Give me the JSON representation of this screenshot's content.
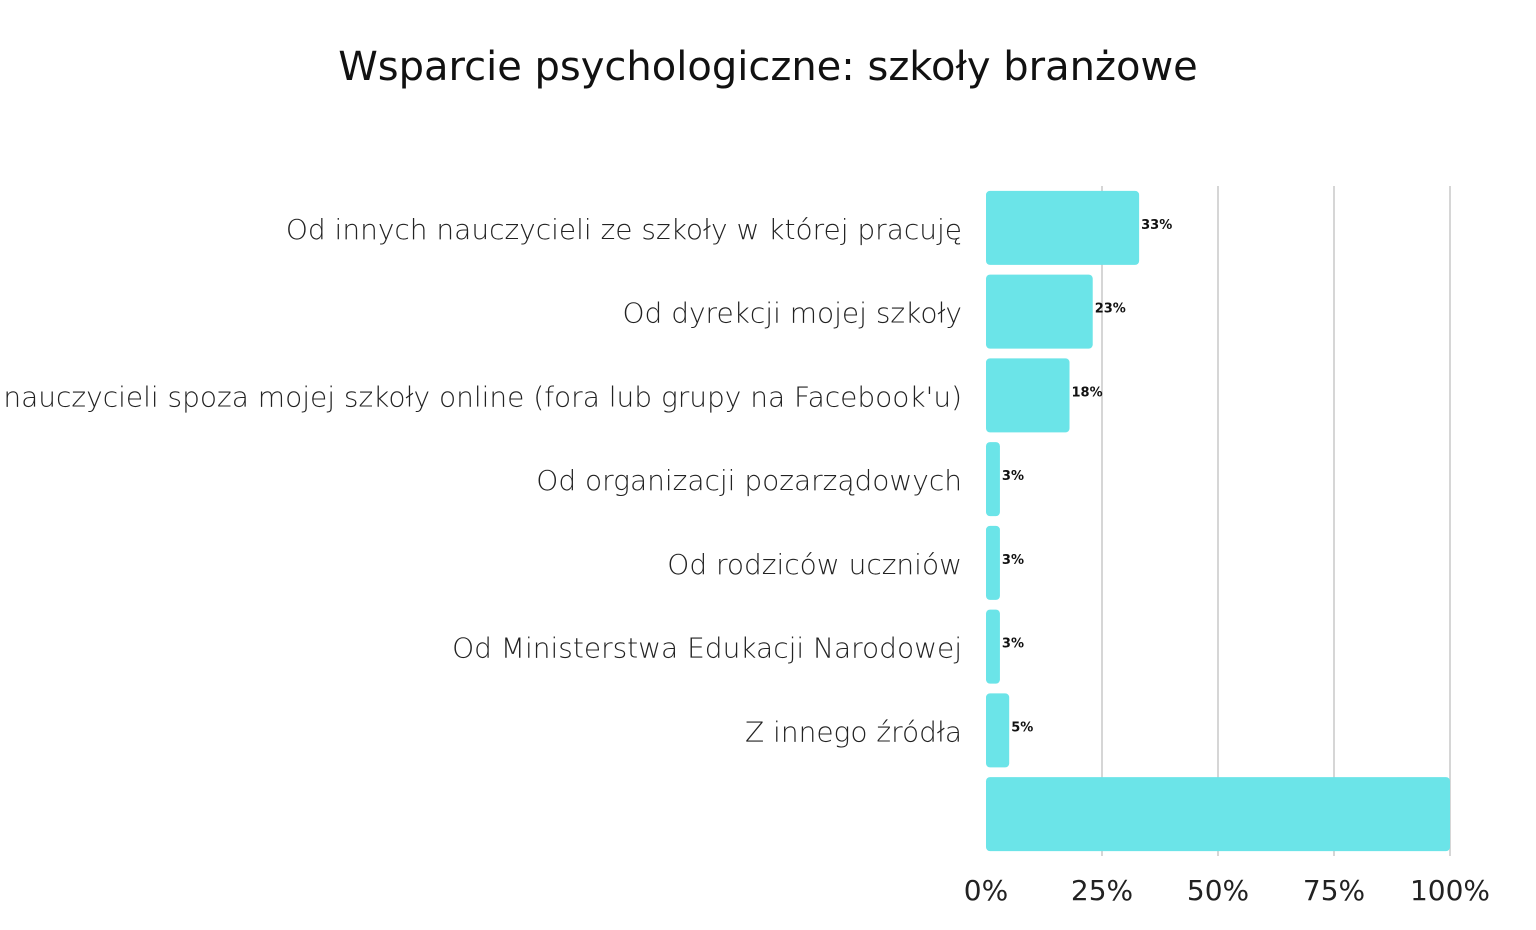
{
  "chart_data": {
    "type": "bar",
    "orientation": "horizontal",
    "title": "Wsparcie psychologiczne: szkoły branżowe",
    "categories": [
      "Od innych nauczycieli ze szkoły w której pracuję",
      "Od dyrekcji mojej szkoły",
      "Od nauczycieli spoza mojej szkoły online (fora lub grupy na Facebook'u)",
      "Od organizacji pozarządowych",
      "Od rodziców uczniów",
      "Od Ministerstwa Edukacji Narodowej",
      "Z innego źródła",
      ""
    ],
    "values": [
      33,
      23,
      18,
      3,
      3,
      3,
      5,
      100
    ],
    "data_labels": [
      "33%",
      "23%",
      "18%",
      "3%",
      "3%",
      "3%",
      "5%",
      ""
    ],
    "xlim": [
      0,
      100
    ],
    "xticks": [
      0,
      25,
      50,
      75,
      100
    ],
    "xtick_labels": [
      "0%",
      "25%",
      "50%",
      "75%",
      "100%"
    ],
    "grid": true,
    "bar_color": "#6BE4E8",
    "grid_color": "#C8C8C8"
  }
}
